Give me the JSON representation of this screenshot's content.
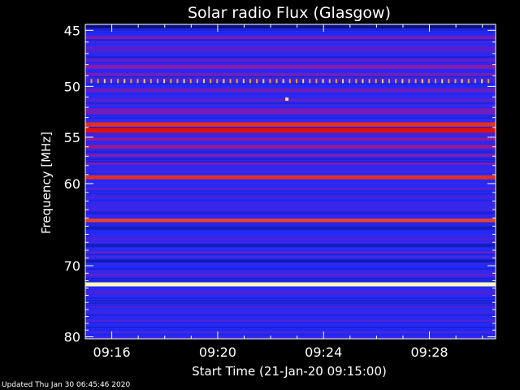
{
  "chart_data": {
    "type": "heatmap",
    "title": "Solar radio Flux (Glasgow)",
    "xlabel": "Start Time (21-Jan-20 09:15:00)",
    "ylabel": "Frequency [MHz]",
    "x_range_minutes": [
      0,
      15.5
    ],
    "y_range_mhz": [
      44.5,
      80.3
    ],
    "y_ticks": [
      {
        "label": "45",
        "value": 45
      },
      {
        "label": "50",
        "value": 50
      },
      {
        "label": "55",
        "value": 55
      },
      {
        "label": "60",
        "value": 60
      },
      {
        "label": "70",
        "value": 70
      },
      {
        "label": "80",
        "value": 80
      }
    ],
    "x_ticks": [
      {
        "label": "09:16",
        "minute": 1
      },
      {
        "label": "09:20",
        "minute": 5
      },
      {
        "label": "09:24",
        "minute": 9
      },
      {
        "label": "09:28",
        "minute": 13
      }
    ],
    "colormap": [
      "#0a0a5c",
      "#1a2bff",
      "#8a1aa8",
      "#e01010",
      "#ffffc0"
    ],
    "bands": [
      {
        "freq_mhz": 44.7,
        "width_mhz": 0.3,
        "level": 0.05
      },
      {
        "freq_mhz": 45.6,
        "width_mhz": 0.3,
        "level": 0.45
      },
      {
        "freq_mhz": 46.6,
        "width_mhz": 0.5,
        "level": 0.38
      },
      {
        "freq_mhz": 47.6,
        "width_mhz": 0.3,
        "level": 0.4
      },
      {
        "freq_mhz": 48.2,
        "width_mhz": 0.35,
        "level": 0.5
      },
      {
        "freq_mhz": 48.9,
        "width_mhz": 0.3,
        "level": 0.45
      },
      {
        "freq_mhz": 50.4,
        "width_mhz": 0.4,
        "level": 0.42
      },
      {
        "freq_mhz": 51.3,
        "width_mhz": 0.3,
        "level": 0.4
      },
      {
        "freq_mhz": 52.4,
        "width_mhz": 0.6,
        "level": 0.45
      },
      {
        "freq_mhz": 53.7,
        "width_mhz": 0.45,
        "level": 0.78
      },
      {
        "freq_mhz": 54.3,
        "width_mhz": 0.5,
        "level": 0.75
      },
      {
        "freq_mhz": 55.2,
        "width_mhz": 0.3,
        "level": 0.55
      },
      {
        "freq_mhz": 56.0,
        "width_mhz": 0.4,
        "level": 0.55
      },
      {
        "freq_mhz": 56.9,
        "width_mhz": 0.3,
        "level": 0.5
      },
      {
        "freq_mhz": 57.8,
        "width_mhz": 0.3,
        "level": 0.45
      },
      {
        "freq_mhz": 59.3,
        "width_mhz": 0.45,
        "level": 0.78
      },
      {
        "freq_mhz": 60.6,
        "width_mhz": 0.3,
        "level": 0.38
      },
      {
        "freq_mhz": 61.6,
        "width_mhz": 0.3,
        "level": 0.35
      },
      {
        "freq_mhz": 63.4,
        "width_mhz": 0.35,
        "level": 0.2
      },
      {
        "freq_mhz": 64.3,
        "width_mhz": 0.45,
        "level": 0.8
      },
      {
        "freq_mhz": 65.2,
        "width_mhz": 0.4,
        "level": 0.15
      },
      {
        "freq_mhz": 66.6,
        "width_mhz": 0.3,
        "level": 0.35
      },
      {
        "freq_mhz": 67.4,
        "width_mhz": 0.4,
        "level": 0.15
      },
      {
        "freq_mhz": 68.3,
        "width_mhz": 0.3,
        "level": 0.4
      },
      {
        "freq_mhz": 69.4,
        "width_mhz": 0.4,
        "level": 0.12
      },
      {
        "freq_mhz": 71.3,
        "width_mhz": 0.3,
        "level": 0.4
      },
      {
        "freq_mhz": 72.5,
        "width_mhz": 0.55,
        "level": 1.0
      },
      {
        "freq_mhz": 73.7,
        "width_mhz": 0.3,
        "level": 0.35
      },
      {
        "freq_mhz": 75.6,
        "width_mhz": 0.3,
        "level": 0.35
      },
      {
        "freq_mhz": 77.6,
        "width_mhz": 0.3,
        "level": 0.38
      },
      {
        "freq_mhz": 79.3,
        "width_mhz": 0.3,
        "level": 0.35
      }
    ],
    "interference_line": {
      "freq_mhz": 49.5,
      "minute_from": 0.2,
      "minute_to": 15.3,
      "step_minutes": 0.25
    },
    "burst_point": {
      "freq_mhz": 51.2,
      "minute": 7.6
    }
  },
  "footer": {
    "updated": "Updated Thu Jan 30 06:45:46 2020"
  }
}
